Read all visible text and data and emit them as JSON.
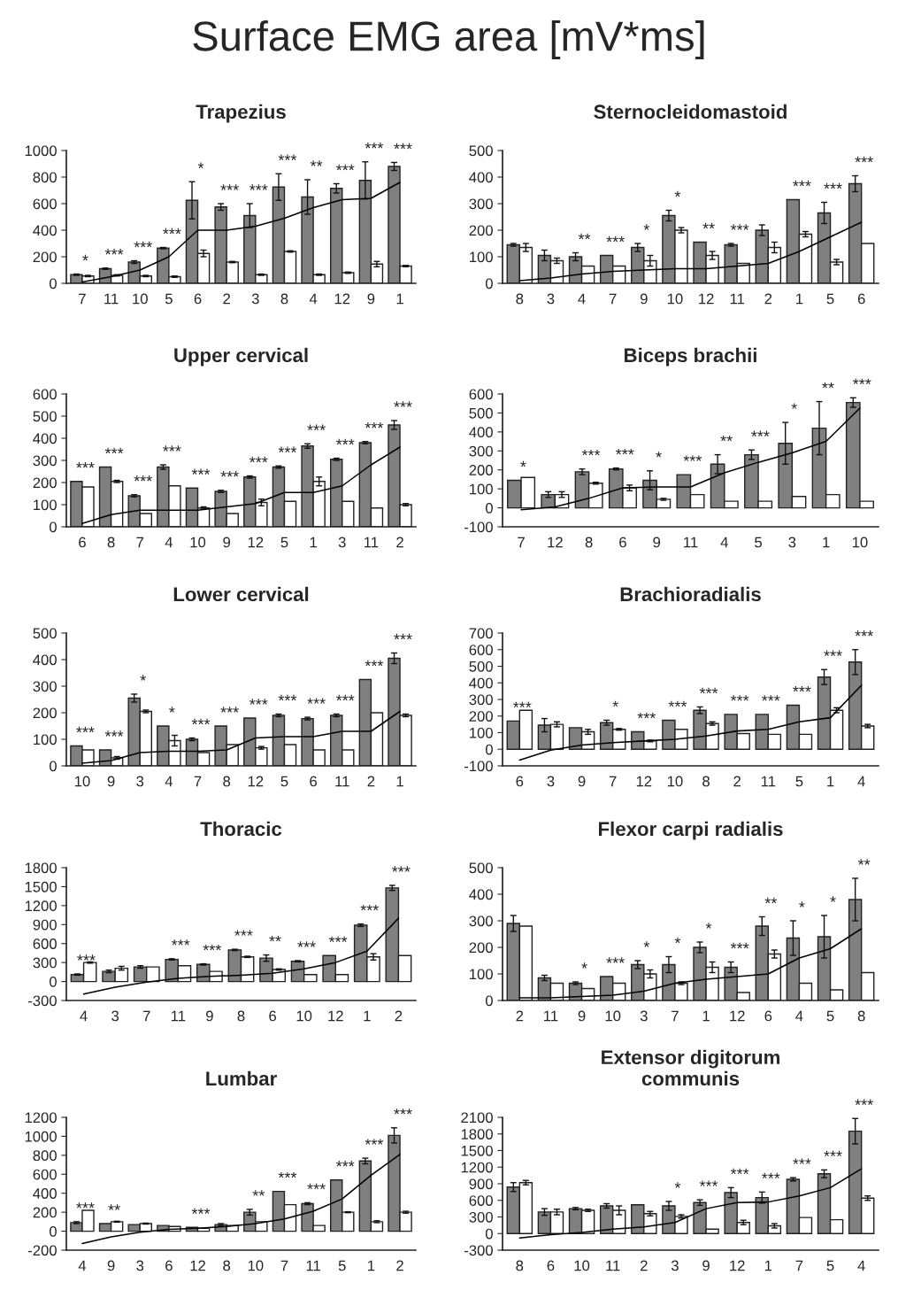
{
  "chart_data": [
    {
      "type": "other",
      "title": "Surface EMG area [mV*ms]"
    },
    {
      "type": "bar",
      "title": "Trapezius",
      "categories": [
        "7",
        "11",
        "10",
        "5",
        "6",
        "2",
        "3",
        "8",
        "4",
        "12",
        "9",
        "1"
      ],
      "ylim": [
        0,
        1000
      ],
      "yticks": [
        0,
        200,
        400,
        600,
        800,
        1000
      ],
      "grid": false,
      "series": [
        {
          "type": "bar",
          "color": "#808080",
          "values": [
            65,
            110,
            160,
            265,
            625,
            575,
            510,
            725,
            650,
            715,
            775,
            880
          ],
          "errors": [
            5,
            5,
            10,
            5,
            140,
            25,
            90,
            100,
            130,
            35,
            140,
            30
          ],
          "value_labels": [
            "*",
            "***",
            "***",
            "***",
            "*",
            "***",
            "***",
            "***",
            "**",
            "***",
            "***",
            "***"
          ]
        },
        {
          "type": "bar",
          "color": "#ffffff",
          "values": [
            55,
            60,
            55,
            50,
            225,
            160,
            65,
            240,
            65,
            80,
            145,
            130
          ],
          "errors": [
            5,
            5,
            5,
            5,
            25,
            5,
            5,
            5,
            5,
            5,
            20,
            5
          ]
        },
        {
          "type": "line",
          "color": "#000000",
          "values": [
            10,
            50,
            100,
            200,
            400,
            400,
            430,
            490,
            570,
            630,
            640,
            760
          ]
        }
      ]
    },
    {
      "type": "bar",
      "title": "Sternocleidomastoid",
      "categories": [
        "8",
        "3",
        "4",
        "7",
        "9",
        "10",
        "12",
        "11",
        "2",
        "1",
        "5",
        "6"
      ],
      "ylim": [
        0,
        500
      ],
      "yticks": [
        0,
        100,
        200,
        300,
        400,
        500
      ],
      "grid": false,
      "series": [
        {
          "type": "bar",
          "color": "#808080",
          "values": [
            145,
            105,
            100,
            105,
            135,
            255,
            155,
            145,
            200,
            315,
            265,
            375
          ],
          "errors": [
            5,
            20,
            15,
            null,
            15,
            20,
            null,
            5,
            20,
            null,
            40,
            30
          ],
          "value_labels": [
            null,
            null,
            "**",
            "***",
            "*",
            "*",
            "**",
            "***",
            null,
            "***",
            "***",
            "***"
          ]
        },
        {
          "type": "bar",
          "color": "#ffffff",
          "values": [
            135,
            85,
            65,
            65,
            85,
            200,
            105,
            75,
            135,
            185,
            80,
            150
          ],
          "errors": [
            15,
            10,
            null,
            null,
            20,
            10,
            15,
            null,
            20,
            10,
            10,
            null
          ]
        },
        {
          "type": "line",
          "color": "#000000",
          "values": [
            10,
            20,
            35,
            45,
            50,
            55,
            55,
            65,
            75,
            120,
            175,
            230
          ]
        }
      ]
    },
    {
      "type": "bar",
      "title": "Upper cervical",
      "categories": [
        "6",
        "8",
        "7",
        "4",
        "10",
        "9",
        "12",
        "5",
        "1",
        "3",
        "11",
        "2"
      ],
      "ylim": [
        0,
        600
      ],
      "yticks": [
        0,
        100,
        200,
        300,
        400,
        500,
        600
      ],
      "grid": false,
      "series": [
        {
          "type": "bar",
          "color": "#808080",
          "values": [
            205,
            270,
            140,
            270,
            175,
            160,
            225,
            270,
            365,
            305,
            380,
            460
          ],
          "errors": [
            null,
            null,
            5,
            10,
            null,
            5,
            5,
            5,
            10,
            5,
            5,
            20
          ],
          "value_labels": [
            "***",
            "***",
            "***",
            "***",
            "***",
            "***",
            "***",
            "***",
            "***",
            "***",
            "***",
            "***"
          ]
        },
        {
          "type": "bar",
          "color": "#ffffff",
          "values": [
            180,
            205,
            60,
            185,
            85,
            60,
            110,
            115,
            205,
            115,
            85,
            100
          ],
          "errors": [
            null,
            5,
            null,
            null,
            5,
            null,
            15,
            null,
            20,
            null,
            null,
            5
          ]
        },
        {
          "type": "line",
          "color": "#000000",
          "values": [
            15,
            55,
            75,
            75,
            75,
            90,
            105,
            155,
            155,
            185,
            280,
            360
          ]
        }
      ]
    },
    {
      "type": "bar",
      "title": "Biceps brachii",
      "categories": [
        "7",
        "12",
        "8",
        "6",
        "9",
        "11",
        "4",
        "5",
        "3",
        "1",
        "10"
      ],
      "ylim": [
        -100,
        600
      ],
      "yticks": [
        -100,
        0,
        100,
        200,
        300,
        400,
        500,
        600
      ],
      "grid": false,
      "series": [
        {
          "type": "bar",
          "color": "#808080",
          "values": [
            145,
            70,
            190,
            205,
            145,
            175,
            230,
            280,
            340,
            420,
            555
          ],
          "errors": [
            null,
            15,
            15,
            5,
            50,
            null,
            50,
            25,
            110,
            140,
            25
          ],
          "value_labels": [
            "*",
            null,
            "***",
            "***",
            "*",
            "***",
            "**",
            "***",
            "*",
            "**",
            "***"
          ]
        },
        {
          "type": "bar",
          "color": "#ffffff",
          "values": [
            160,
            70,
            130,
            105,
            45,
            70,
            35,
            35,
            60,
            70,
            35
          ],
          "errors": [
            null,
            15,
            5,
            15,
            5,
            null,
            null,
            null,
            null,
            null,
            null
          ]
        },
        {
          "type": "line",
          "color": "#000000",
          "values": [
            -10,
            5,
            50,
            105,
            110,
            110,
            185,
            240,
            290,
            350,
            525
          ]
        }
      ]
    },
    {
      "type": "bar",
      "title": "Lower cervical",
      "categories": [
        "10",
        "9",
        "3",
        "4",
        "7",
        "8",
        "12",
        "5",
        "6",
        "11",
        "2",
        "1"
      ],
      "ylim": [
        0,
        500
      ],
      "yticks": [
        0,
        100,
        200,
        300,
        400,
        500
      ],
      "grid": false,
      "series": [
        {
          "type": "bar",
          "color": "#808080",
          "values": [
            75,
            60,
            255,
            150,
            100,
            150,
            180,
            190,
            178,
            190,
            325,
            405
          ],
          "errors": [
            null,
            null,
            15,
            null,
            5,
            null,
            null,
            5,
            5,
            5,
            null,
            20
          ],
          "value_labels": [
            "***",
            "***",
            "*",
            "*",
            "***",
            "***",
            "***",
            "***",
            "***",
            "***",
            "***",
            "***"
          ]
        },
        {
          "type": "bar",
          "color": "#ffffff",
          "values": [
            60,
            30,
            205,
            95,
            50,
            80,
            68,
            80,
            60,
            60,
            200,
            190
          ],
          "errors": [
            null,
            5,
            5,
            20,
            null,
            null,
            5,
            null,
            null,
            null,
            null,
            5
          ]
        },
        {
          "type": "line",
          "color": "#000000",
          "values": [
            10,
            20,
            50,
            55,
            55,
            60,
            105,
            110,
            110,
            130,
            130,
            205
          ]
        }
      ]
    },
    {
      "type": "bar",
      "title": "Brachioradialis",
      "categories": [
        "6",
        "3",
        "9",
        "7",
        "12",
        "10",
        "8",
        "2",
        "11",
        "5",
        "1",
        "4"
      ],
      "ylim": [
        -100,
        700
      ],
      "yticks": [
        -100,
        0,
        100,
        200,
        300,
        400,
        500,
        600,
        700
      ],
      "grid": false,
      "series": [
        {
          "type": "bar",
          "color": "#808080",
          "values": [
            170,
            145,
            130,
            160,
            105,
            175,
            235,
            210,
            210,
            265,
            435,
            525
          ],
          "errors": [
            null,
            40,
            null,
            15,
            null,
            null,
            20,
            null,
            null,
            null,
            45,
            75
          ],
          "value_labels": [
            "***",
            null,
            null,
            "*",
            "***",
            "***",
            "***",
            "***",
            "***",
            "***",
            "***",
            "***"
          ]
        },
        {
          "type": "bar",
          "color": "#ffffff",
          "values": [
            235,
            150,
            105,
            120,
            50,
            120,
            155,
            95,
            90,
            90,
            235,
            140
          ],
          "errors": [
            null,
            15,
            15,
            5,
            5,
            null,
            10,
            null,
            null,
            null,
            15,
            10
          ]
        },
        {
          "type": "line",
          "color": "#000000",
          "values": [
            -65,
            -5,
            25,
            40,
            50,
            60,
            80,
            110,
            120,
            165,
            190,
            385
          ]
        }
      ]
    },
    {
      "type": "bar",
      "title": "Thoracic",
      "categories": [
        "4",
        "3",
        "7",
        "11",
        "9",
        "8",
        "6",
        "10",
        "12",
        "1",
        "2"
      ],
      "ylim": [
        -300,
        1800
      ],
      "yticks": [
        -300,
        0,
        300,
        600,
        900,
        1200,
        1500,
        1800
      ],
      "grid": false,
      "series": [
        {
          "type": "bar",
          "color": "#808080",
          "values": [
            110,
            160,
            230,
            350,
            270,
            500,
            370,
            320,
            410,
            890,
            1480
          ],
          "errors": [
            10,
            20,
            20,
            10,
            10,
            10,
            50,
            10,
            null,
            20,
            40
          ],
          "value_labels": [
            "***",
            null,
            null,
            "***",
            "***",
            "***",
            "**",
            "***",
            "***",
            "***",
            "***"
          ]
        },
        {
          "type": "bar",
          "color": "#ffffff",
          "values": [
            300,
            210,
            230,
            250,
            160,
            390,
            190,
            110,
            110,
            390,
            410
          ],
          "errors": [
            10,
            30,
            null,
            null,
            null,
            10,
            10,
            null,
            null,
            50,
            null
          ]
        },
        {
          "type": "line",
          "color": "#000000",
          "values": [
            -200,
            -90,
            -10,
            50,
            80,
            100,
            130,
            200,
            300,
            480,
            1000
          ]
        }
      ]
    },
    {
      "type": "bar",
      "title": "Flexor carpi radialis",
      "categories": [
        "2",
        "11",
        "9",
        "10",
        "3",
        "7",
        "1",
        "12",
        "6",
        "4",
        "5",
        "8"
      ],
      "ylim": [
        0,
        500
      ],
      "yticks": [
        0,
        100,
        200,
        300,
        400,
        500
      ],
      "grid": false,
      "series": [
        {
          "type": "bar",
          "color": "#808080",
          "values": [
            290,
            85,
            65,
            90,
            135,
            135,
            200,
            125,
            280,
            235,
            240,
            380
          ],
          "errors": [
            30,
            10,
            5,
            null,
            15,
            30,
            20,
            20,
            35,
            65,
            80,
            80
          ],
          "value_labels": [
            null,
            null,
            "*",
            "***",
            "*",
            "*",
            "*",
            "***",
            "**",
            "*",
            "*",
            "**"
          ]
        },
        {
          "type": "bar",
          "color": "#ffffff",
          "values": [
            280,
            65,
            45,
            65,
            100,
            65,
            125,
            30,
            175,
            65,
            40,
            105
          ],
          "errors": [
            null,
            null,
            null,
            null,
            15,
            5,
            20,
            null,
            15,
            null,
            null,
            null
          ]
        },
        {
          "type": "line",
          "color": "#000000",
          "values": [
            10,
            10,
            15,
            20,
            35,
            65,
            80,
            90,
            100,
            160,
            195,
            270
          ]
        }
      ]
    },
    {
      "type": "bar",
      "title": "Lumbar",
      "categories": [
        "4",
        "9",
        "3",
        "6",
        "12",
        "8",
        "10",
        "7",
        "11",
        "5",
        "1",
        "2"
      ],
      "ylim": [
        -200,
        1200
      ],
      "yticks": [
        -200,
        0,
        200,
        400,
        600,
        800,
        1000,
        1200
      ],
      "grid": false,
      "series": [
        {
          "type": "bar",
          "color": "#808080",
          "values": [
            90,
            80,
            70,
            60,
            40,
            70,
            200,
            420,
            290,
            540,
            740,
            1010
          ],
          "errors": [
            10,
            null,
            null,
            null,
            null,
            10,
            30,
            null,
            10,
            null,
            30,
            80
          ],
          "value_labels": [
            "***",
            "**",
            null,
            null,
            "***",
            null,
            "**",
            "***",
            "***",
            "***",
            "***",
            "***"
          ]
        },
        {
          "type": "bar",
          "color": "#ffffff",
          "values": [
            220,
            100,
            80,
            50,
            30,
            60,
            100,
            280,
            60,
            200,
            100,
            200
          ],
          "errors": [
            null,
            5,
            5,
            null,
            null,
            null,
            null,
            null,
            null,
            5,
            10,
            10
          ]
        },
        {
          "type": "line",
          "color": "#000000",
          "values": [
            -130,
            -60,
            -10,
            20,
            30,
            50,
            80,
            130,
            210,
            340,
            590,
            810
          ]
        }
      ]
    },
    {
      "type": "bar",
      "title": "Extensor digitorum\ncommunis",
      "categories": [
        "8",
        "6",
        "10",
        "11",
        "2",
        "3",
        "9",
        "12",
        "1",
        "7",
        "5",
        "4"
      ],
      "ylim": [
        -300,
        2100
      ],
      "yticks": [
        -300,
        0,
        300,
        600,
        900,
        1200,
        1500,
        1800,
        2100
      ],
      "grid": false,
      "series": [
        {
          "type": "bar",
          "color": "#808080",
          "values": [
            840,
            390,
            450,
            500,
            520,
            500,
            560,
            740,
            650,
            980,
            1080,
            1850
          ],
          "errors": [
            80,
            60,
            20,
            40,
            null,
            80,
            50,
            90,
            100,
            30,
            70,
            230
          ],
          "value_labels": [
            null,
            null,
            null,
            null,
            null,
            "*",
            "***",
            "***",
            "***",
            "***",
            "***",
            "***"
          ]
        },
        {
          "type": "bar",
          "color": "#ffffff",
          "values": [
            920,
            390,
            420,
            420,
            360,
            310,
            80,
            200,
            140,
            290,
            250,
            640
          ],
          "errors": [
            40,
            50,
            20,
            80,
            40,
            30,
            null,
            40,
            40,
            null,
            null,
            40
          ]
        },
        {
          "type": "line",
          "color": "#000000",
          "values": [
            -80,
            -20,
            20,
            80,
            120,
            200,
            450,
            560,
            570,
            680,
            830,
            1170
          ]
        }
      ]
    }
  ]
}
